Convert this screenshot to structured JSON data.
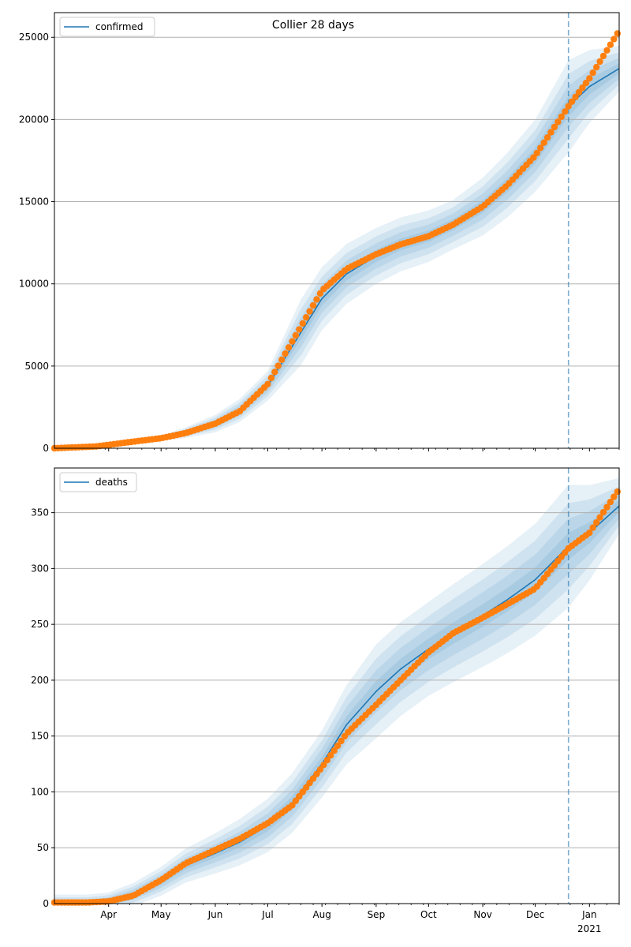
{
  "chart_data": [
    {
      "type": "line",
      "title": "Collier 28 days",
      "xlabel": "",
      "ylabel": "",
      "x_range": [
        "2020-03-01",
        "2021-01-18"
      ],
      "ylim": [
        0,
        26500
      ],
      "y_ticks": [
        0,
        5000,
        10000,
        15000,
        20000,
        25000
      ],
      "x_ticks": [
        {
          "date": "2020-04-01",
          "label": "Apr"
        },
        {
          "date": "2020-05-01",
          "label": "May"
        },
        {
          "date": "2020-06-01",
          "label": "Jun"
        },
        {
          "date": "2020-07-01",
          "label": "Jul"
        },
        {
          "date": "2020-08-01",
          "label": "Aug"
        },
        {
          "date": "2020-09-01",
          "label": "Sep"
        },
        {
          "date": "2020-10-01",
          "label": "Oct"
        },
        {
          "date": "2020-11-01",
          "label": "Nov"
        },
        {
          "date": "2020-12-01",
          "label": "Dec"
        },
        {
          "date": "2021-01-01",
          "label": "Jan",
          "sublabel": "2021"
        }
      ],
      "grid": "y",
      "legend": "upper-left",
      "forecast_start": "2020-12-20",
      "series": [
        {
          "name": "confirmed",
          "color": "#1f77b4",
          "kind": "line",
          "points": [
            [
              "2020-03-01",
              0
            ],
            [
              "2020-03-25",
              120
            ],
            [
              "2020-04-15",
              380
            ],
            [
              "2020-05-01",
              600
            ],
            [
              "2020-05-15",
              950
            ],
            [
              "2020-06-01",
              1500
            ],
            [
              "2020-06-15",
              2300
            ],
            [
              "2020-07-01",
              3800
            ],
            [
              "2020-07-15",
              6200
            ],
            [
              "2020-08-01",
              9100
            ],
            [
              "2020-08-15",
              10600
            ],
            [
              "2020-09-01",
              11700
            ],
            [
              "2020-09-15",
              12400
            ],
            [
              "2020-10-01",
              12900
            ],
            [
              "2020-10-15",
              13600
            ],
            [
              "2020-11-01",
              14700
            ],
            [
              "2020-11-15",
              16000
            ],
            [
              "2020-12-01",
              17800
            ],
            [
              "2020-12-20",
              20800
            ],
            [
              "2021-01-01",
              22000
            ],
            [
              "2021-01-18",
              23100
            ]
          ],
          "band_widths": [
            [
              "2020-03-01",
              0
            ],
            [
              "2020-05-01",
              150
            ],
            [
              "2020-07-01",
              900
            ],
            [
              "2020-07-20",
              2000
            ],
            [
              "2020-09-01",
              1700
            ],
            [
              "2020-10-15",
              1500
            ],
            [
              "2020-12-01",
              2200
            ],
            [
              "2020-12-20",
              2800
            ],
            [
              "2021-01-18",
              1400
            ]
          ]
        },
        {
          "name": "",
          "color": "#ff7f0e",
          "kind": "scatter",
          "points": [
            [
              "2020-03-01",
              0
            ],
            [
              "2020-03-25",
              110
            ],
            [
              "2020-04-15",
              400
            ],
            [
              "2020-05-01",
              610
            ],
            [
              "2020-05-15",
              920
            ],
            [
              "2020-06-01",
              1500
            ],
            [
              "2020-06-15",
              2250
            ],
            [
              "2020-07-01",
              3900
            ],
            [
              "2020-07-15",
              6500
            ],
            [
              "2020-08-01",
              9600
            ],
            [
              "2020-08-15",
              10900
            ],
            [
              "2020-09-01",
              11800
            ],
            [
              "2020-09-15",
              12400
            ],
            [
              "2020-10-01",
              12900
            ],
            [
              "2020-10-15",
              13600
            ],
            [
              "2020-11-01",
              14700
            ],
            [
              "2020-11-15",
              16000
            ],
            [
              "2020-12-01",
              17800
            ],
            [
              "2020-12-20",
              20800
            ],
            [
              "2021-01-01",
              22500
            ],
            [
              "2021-01-18",
              25400
            ]
          ]
        }
      ]
    },
    {
      "type": "line",
      "title": "",
      "xlabel": "",
      "ylabel": "",
      "x_range": [
        "2020-03-01",
        "2021-01-18"
      ],
      "ylim": [
        0,
        390
      ],
      "y_ticks": [
        0,
        50,
        100,
        150,
        200,
        250,
        300,
        350
      ],
      "x_ticks": [
        {
          "date": "2020-04-01",
          "label": "Apr"
        },
        {
          "date": "2020-05-01",
          "label": "May"
        },
        {
          "date": "2020-06-01",
          "label": "Jun"
        },
        {
          "date": "2020-07-01",
          "label": "Jul"
        },
        {
          "date": "2020-08-01",
          "label": "Aug"
        },
        {
          "date": "2020-09-01",
          "label": "Sep"
        },
        {
          "date": "2020-10-01",
          "label": "Oct"
        },
        {
          "date": "2020-11-01",
          "label": "Nov"
        },
        {
          "date": "2020-12-01",
          "label": "Dec"
        },
        {
          "date": "2021-01-01",
          "label": "Jan",
          "sublabel": "2021"
        }
      ],
      "grid": "y",
      "legend": "upper-left",
      "forecast_start": "2020-12-20",
      "series": [
        {
          "name": "deaths",
          "color": "#1f77b4",
          "kind": "line",
          "points": [
            [
              "2020-03-01",
              0
            ],
            [
              "2020-03-20",
              0
            ],
            [
              "2020-04-01",
              2
            ],
            [
              "2020-04-15",
              8
            ],
            [
              "2020-05-01",
              20
            ],
            [
              "2020-05-15",
              34
            ],
            [
              "2020-06-01",
              45
            ],
            [
              "2020-06-15",
              55
            ],
            [
              "2020-07-01",
              70
            ],
            [
              "2020-07-15",
              90
            ],
            [
              "2020-08-01",
              125
            ],
            [
              "2020-08-15",
              160
            ],
            [
              "2020-09-01",
              190
            ],
            [
              "2020-09-15",
              210
            ],
            [
              "2020-10-01",
              228
            ],
            [
              "2020-10-15",
              242
            ],
            [
              "2020-11-01",
              258
            ],
            [
              "2020-11-15",
              272
            ],
            [
              "2020-12-01",
              290
            ],
            [
              "2020-12-20",
              320
            ],
            [
              "2021-01-01",
              332
            ],
            [
              "2021-01-18",
              356
            ]
          ],
          "band_widths": [
            [
              "2020-03-01",
              8
            ],
            [
              "2020-04-01",
              8
            ],
            [
              "2020-06-01",
              18
            ],
            [
              "2020-08-01",
              30
            ],
            [
              "2020-09-01",
              42
            ],
            [
              "2020-10-01",
              42
            ],
            [
              "2020-12-01",
              50
            ],
            [
              "2020-12-20",
              55
            ],
            [
              "2021-01-18",
              25
            ]
          ]
        },
        {
          "name": "",
          "color": "#ff7f0e",
          "kind": "scatter",
          "points": [
            [
              "2020-03-01",
              1
            ],
            [
              "2020-03-20",
              1
            ],
            [
              "2020-04-01",
              2
            ],
            [
              "2020-04-15",
              7
            ],
            [
              "2020-05-01",
              21
            ],
            [
              "2020-05-15",
              36
            ],
            [
              "2020-06-01",
              48
            ],
            [
              "2020-06-15",
              58
            ],
            [
              "2020-07-01",
              72
            ],
            [
              "2020-07-15",
              88
            ],
            [
              "2020-08-01",
              122
            ],
            [
              "2020-08-15",
              152
            ],
            [
              "2020-09-01",
              178
            ],
            [
              "2020-09-15",
              200
            ],
            [
              "2020-10-01",
              225
            ],
            [
              "2020-10-15",
              242
            ],
            [
              "2020-11-01",
              256
            ],
            [
              "2020-11-15",
              268
            ],
            [
              "2020-12-01",
              282
            ],
            [
              "2020-12-20",
              318
            ],
            [
              "2021-01-01",
              332
            ],
            [
              "2021-01-18",
              371
            ]
          ]
        }
      ]
    }
  ]
}
